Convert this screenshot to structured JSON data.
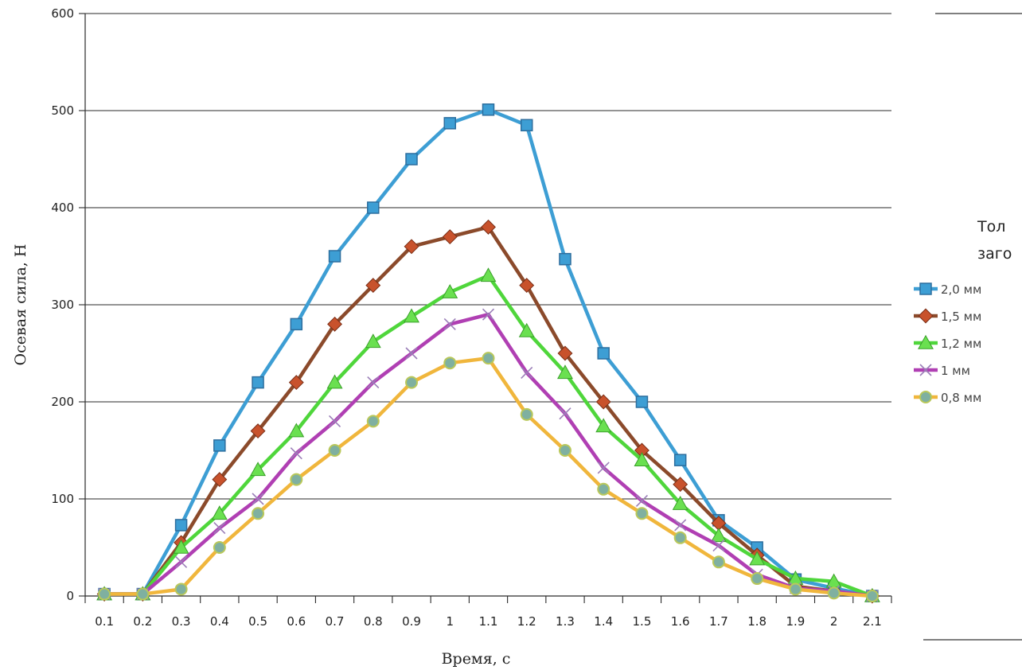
{
  "chart_data": {
    "type": "line",
    "xlabel": "Время, с",
    "ylabel": "Осевая сила, Н",
    "ylim": [
      0,
      600
    ],
    "y_ticks": [
      "0",
      "100",
      "200",
      "300",
      "400",
      "500",
      "600"
    ],
    "categories": [
      "0.1",
      "0.2",
      "0.3",
      "0.4",
      "0.5",
      "0.6",
      "0.7",
      "0.8",
      "0.9",
      "1",
      "1.1",
      "1.2",
      "1.3",
      "1.4",
      "1.5",
      "1.6",
      "1.7",
      "1.8",
      "1.9",
      "2",
      "2.1"
    ],
    "grid": true,
    "legend": {
      "placement": "right",
      "title_lines": [
        "Тол",
        "заго"
      ]
    },
    "series": [
      {
        "name": "2,0 мм",
        "color": "#3d9ed4",
        "marker": "square",
        "values": [
          2,
          2,
          73,
          155,
          220,
          280,
          350,
          400,
          450,
          487,
          501,
          485,
          347,
          250,
          200,
          140,
          78,
          50,
          17,
          8,
          0
        ]
      },
      {
        "name": "1,5 мм",
        "color": "#8b4a2b",
        "marker": "diamond",
        "values": [
          2,
          2,
          55,
          120,
          170,
          220,
          280,
          320,
          360,
          370,
          380,
          320,
          250,
          200,
          150,
          115,
          75,
          42,
          10,
          5,
          0
        ]
      },
      {
        "name": "1,2 мм",
        "color": "#4fd63b",
        "marker": "triangle",
        "values": [
          2,
          2,
          50,
          85,
          130,
          170,
          220,
          262,
          288,
          313,
          330,
          273,
          230,
          175,
          140,
          95,
          62,
          38,
          18,
          15,
          0
        ]
      },
      {
        "name": "1 мм",
        "color": "#b03fb3",
        "marker": "x",
        "values": [
          2,
          2,
          35,
          70,
          100,
          147,
          180,
          220,
          250,
          280,
          290,
          230,
          188,
          132,
          98,
          73,
          52,
          22,
          8,
          5,
          0
        ]
      },
      {
        "name": "0,8 мм",
        "color": "#f0b63c",
        "marker": "circle",
        "values": [
          2,
          2,
          7,
          50,
          85,
          120,
          150,
          180,
          220,
          240,
          245,
          187,
          150,
          110,
          85,
          60,
          35,
          18,
          7,
          3,
          0
        ]
      }
    ]
  }
}
